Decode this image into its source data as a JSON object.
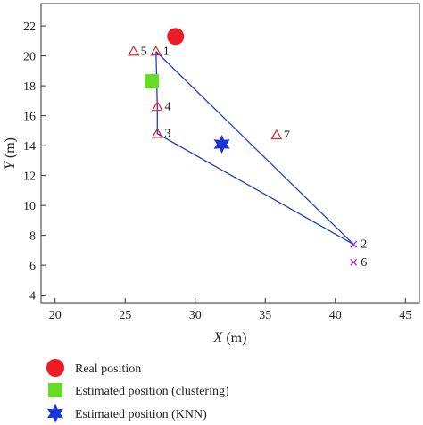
{
  "chart_data": {
    "type": "scatter",
    "xlabel": {
      "var": "X",
      "unit": " (m)"
    },
    "ylabel": {
      "var": "Y",
      "unit": " (m)"
    },
    "xlim": [
      19,
      46
    ],
    "ylim": [
      3.5,
      23.5
    ],
    "xticks": [
      20,
      25,
      30,
      35,
      40,
      45
    ],
    "yticks": [
      4,
      6,
      8,
      10,
      12,
      14,
      16,
      18,
      20,
      22
    ],
    "grid": false,
    "legend_position": "bottom-left",
    "colors": {
      "triangle": "#e0282c",
      "cross": "#a020c8",
      "line": "#1f3fc8",
      "real": "#ee1c24",
      "clustering": "#66dd22",
      "knn": "#1a35d6"
    },
    "reference_points": [
      {
        "label": "1",
        "x": 27.2,
        "y": 20.3,
        "marker": "triangle"
      },
      {
        "label": "2",
        "x": 41.3,
        "y": 7.4,
        "marker": "cross"
      },
      {
        "label": "3",
        "x": 27.3,
        "y": 14.8,
        "marker": "triangle"
      },
      {
        "label": "4",
        "x": 27.3,
        "y": 16.6,
        "marker": "triangle"
      },
      {
        "label": "5",
        "x": 25.6,
        "y": 20.3,
        "marker": "triangle"
      },
      {
        "label": "6",
        "x": 41.3,
        "y": 6.2,
        "marker": "cross"
      },
      {
        "label": "7",
        "x": 35.8,
        "y": 14.7,
        "marker": "triangle"
      }
    ],
    "knn_polygon": [
      {
        "x": 27.2,
        "y": 20.3
      },
      {
        "x": 41.3,
        "y": 7.4
      },
      {
        "x": 27.3,
        "y": 14.8
      },
      {
        "x": 27.3,
        "y": 16.6
      },
      {
        "x": 27.2,
        "y": 20.3
      }
    ],
    "real_position": {
      "x": 28.6,
      "y": 21.3
    },
    "estimated_clustering": {
      "x": 26.9,
      "y": 18.3
    },
    "estimated_knn": {
      "x": 31.9,
      "y": 14.1
    },
    "legend": [
      {
        "key": "real",
        "label": "Real position"
      },
      {
        "key": "clustering",
        "label": "Estimated position (clustering)"
      },
      {
        "key": "knn",
        "label": "Estimated position (KNN)"
      }
    ]
  }
}
